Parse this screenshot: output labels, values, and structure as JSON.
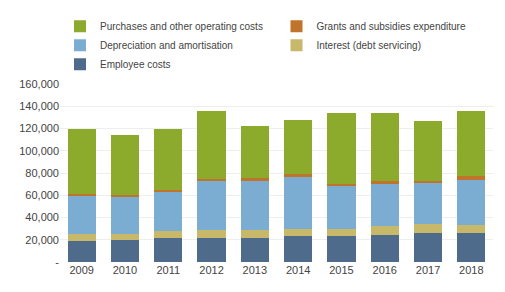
{
  "chart_data": {
    "type": "bar",
    "stacked": true,
    "categories": [
      "2009",
      "2010",
      "2011",
      "2012",
      "2013",
      "2014",
      "2015",
      "2016",
      "2017",
      "2018"
    ],
    "series": [
      {
        "name": "Employee costs",
        "color": "#4e6b8c",
        "values": [
          19000,
          19500,
          22000,
          22000,
          22000,
          23000,
          23500,
          24000,
          26000,
          26000
        ]
      },
      {
        "name": "Interest (debt servicing)",
        "color": "#c8b86a",
        "values": [
          6000,
          5500,
          6000,
          6500,
          7000,
          7000,
          6500,
          8000,
          8000,
          7500
        ]
      },
      {
        "name": "Depreciation and amortisation",
        "color": "#7badd3",
        "values": [
          34000,
          33000,
          35000,
          44000,
          44000,
          46000,
          38000,
          38000,
          37000,
          40000
        ]
      },
      {
        "name": "Grants and subsidies expenditure",
        "color": "#c0732a",
        "values": [
          2500,
          2000,
          2000,
          2500,
          2500,
          3500,
          2500,
          2500,
          2000,
          3500
        ]
      },
      {
        "name": "Purchases and other operating costs",
        "color": "#8caa2c",
        "values": [
          58000,
          54000,
          55000,
          61000,
          47000,
          48000,
          63000,
          61000,
          54000,
          59000
        ]
      }
    ],
    "ylim": [
      0,
      160000
    ],
    "yticks": [
      {
        "value": 0,
        "label": "-"
      },
      {
        "value": 20000,
        "label": "20,000"
      },
      {
        "value": 40000,
        "label": "40,000"
      },
      {
        "value": 60000,
        "label": "60,000"
      },
      {
        "value": 80000,
        "label": "80,000"
      },
      {
        "value": 100000,
        "label": "100,000"
      },
      {
        "value": 120000,
        "label": "120,000"
      },
      {
        "value": 140000,
        "label": "140,000"
      },
      {
        "value": 160000,
        "label": "160,000"
      }
    ],
    "grid": true,
    "legend": "upper left"
  }
}
